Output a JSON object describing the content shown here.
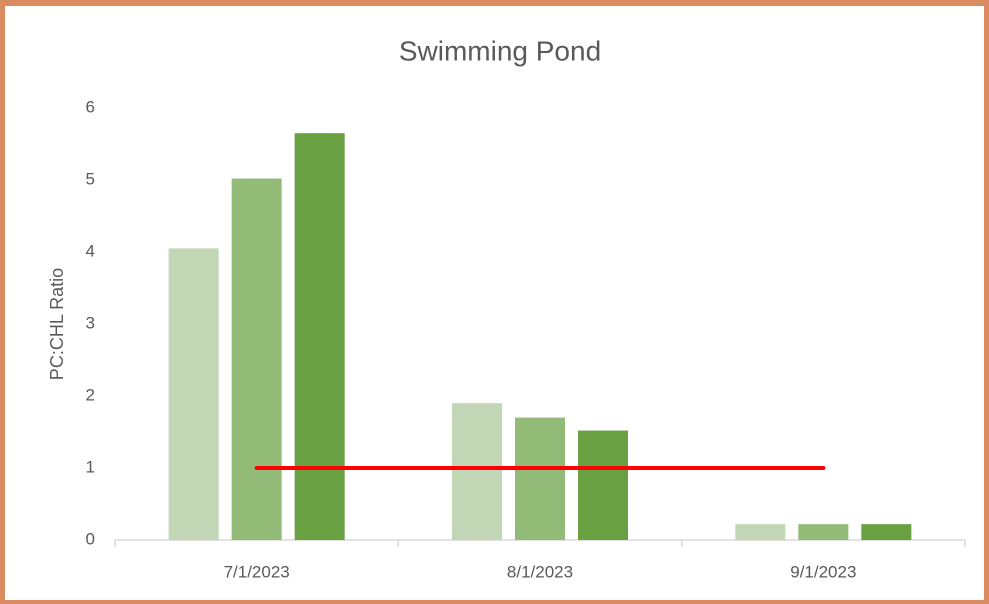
{
  "chart_data": {
    "type": "bar",
    "title": "Swimming Pond",
    "y_label": "PC:CHL Ratio",
    "categories": [
      "7/1/2023",
      "8/1/2023",
      "9/1/2023"
    ],
    "series": [
      {
        "color": "#c0d6b4",
        "values": [
          4.05,
          1.9,
          0.22
        ]
      },
      {
        "color": "#92bb78",
        "values": [
          5.02,
          1.7,
          0.22
        ]
      },
      {
        "color": "#68a042",
        "values": [
          5.65,
          1.52,
          0.22
        ]
      },
      {
        "type": "line",
        "color": "#ff0000",
        "values": [
          1,
          1,
          1
        ]
      }
    ],
    "ylim": [
      0,
      6
    ],
    "yticks": [
      0,
      1,
      2,
      3,
      4,
      5,
      6
    ],
    "grid": false
  }
}
